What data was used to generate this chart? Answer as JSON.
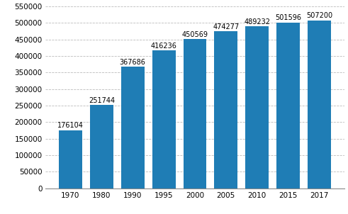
{
  "categories": [
    "1970",
    "1980",
    "1990",
    "1995",
    "2000",
    "2005",
    "2010",
    "2015",
    "2017"
  ],
  "values": [
    176104,
    251744,
    367686,
    416236,
    450569,
    474277,
    489232,
    501596,
    507200
  ],
  "bar_color": "#1f7db5",
  "ylim": [
    0,
    550000
  ],
  "yticks": [
    0,
    50000,
    100000,
    150000,
    200000,
    250000,
    300000,
    350000,
    400000,
    450000,
    500000,
    550000
  ],
  "background_color": "#ffffff",
  "grid_color": "#bbbbbb",
  "label_fontsize": 7.0,
  "tick_fontsize": 7.5
}
